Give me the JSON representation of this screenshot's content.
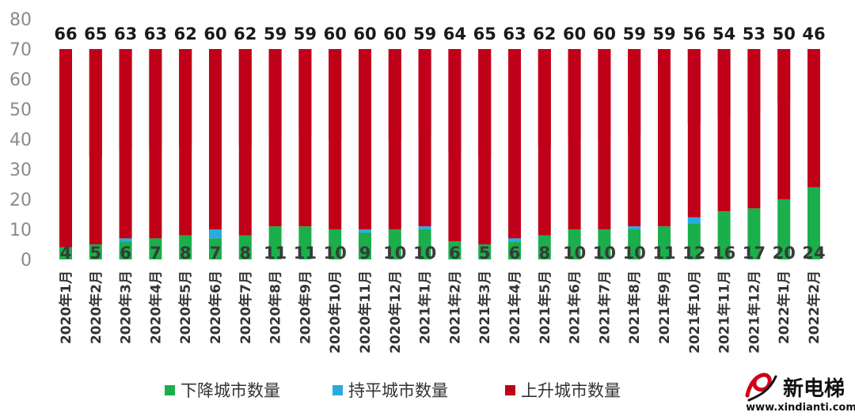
{
  "chart_data": {
    "type": "bar",
    "stacked": true,
    "categories": [
      "2020年1月",
      "2020年2月",
      "2020年3月",
      "2020年4月",
      "2020年5月",
      "2020年6月",
      "2020年7月",
      "2020年8月",
      "2020年9月",
      "2020年10月",
      "2020年11月",
      "2020年12月",
      "2021年1月",
      "2021年2月",
      "2021年3月",
      "2021年4月",
      "2021年5月",
      "2021年6月",
      "2021年7月",
      "2021年8月",
      "2021年9月",
      "2021年10月",
      "2021年11月",
      "2021年12月",
      "2022年1月",
      "2022年2月"
    ],
    "series": [
      {
        "name": "下降城市数量",
        "color": "#1aaf4b",
        "values": [
          4,
          5,
          6,
          7,
          8,
          7,
          8,
          11,
          11,
          10,
          9,
          10,
          10,
          6,
          5,
          6,
          8,
          10,
          10,
          10,
          11,
          12,
          16,
          17,
          20,
          24
        ]
      },
      {
        "name": "持平城市数量",
        "color": "#29abe2",
        "values": [
          0,
          0,
          1,
          0,
          0,
          3,
          0,
          0,
          0,
          0,
          1,
          0,
          1,
          0,
          0,
          1,
          0,
          0,
          0,
          1,
          0,
          2,
          0,
          0,
          0,
          0
        ]
      },
      {
        "name": "上升城市数量",
        "color": "#c00018",
        "values": [
          66,
          65,
          63,
          63,
          62,
          60,
          62,
          59,
          59,
          60,
          60,
          60,
          59,
          64,
          65,
          63,
          62,
          60,
          60,
          59,
          59,
          56,
          54,
          53,
          50,
          46
        ]
      }
    ],
    "ylim": [
      0,
      80
    ],
    "yticks": [
      0,
      10,
      20,
      30,
      40,
      50,
      60,
      70,
      80
    ],
    "total": 70,
    "grid": false,
    "legend_position": "bottom",
    "title": "",
    "xlabel": "",
    "ylabel": ""
  },
  "watermark": {
    "icon": "swirl-logo-icon",
    "name": "新电梯",
    "url": "www.xindianti.com"
  }
}
